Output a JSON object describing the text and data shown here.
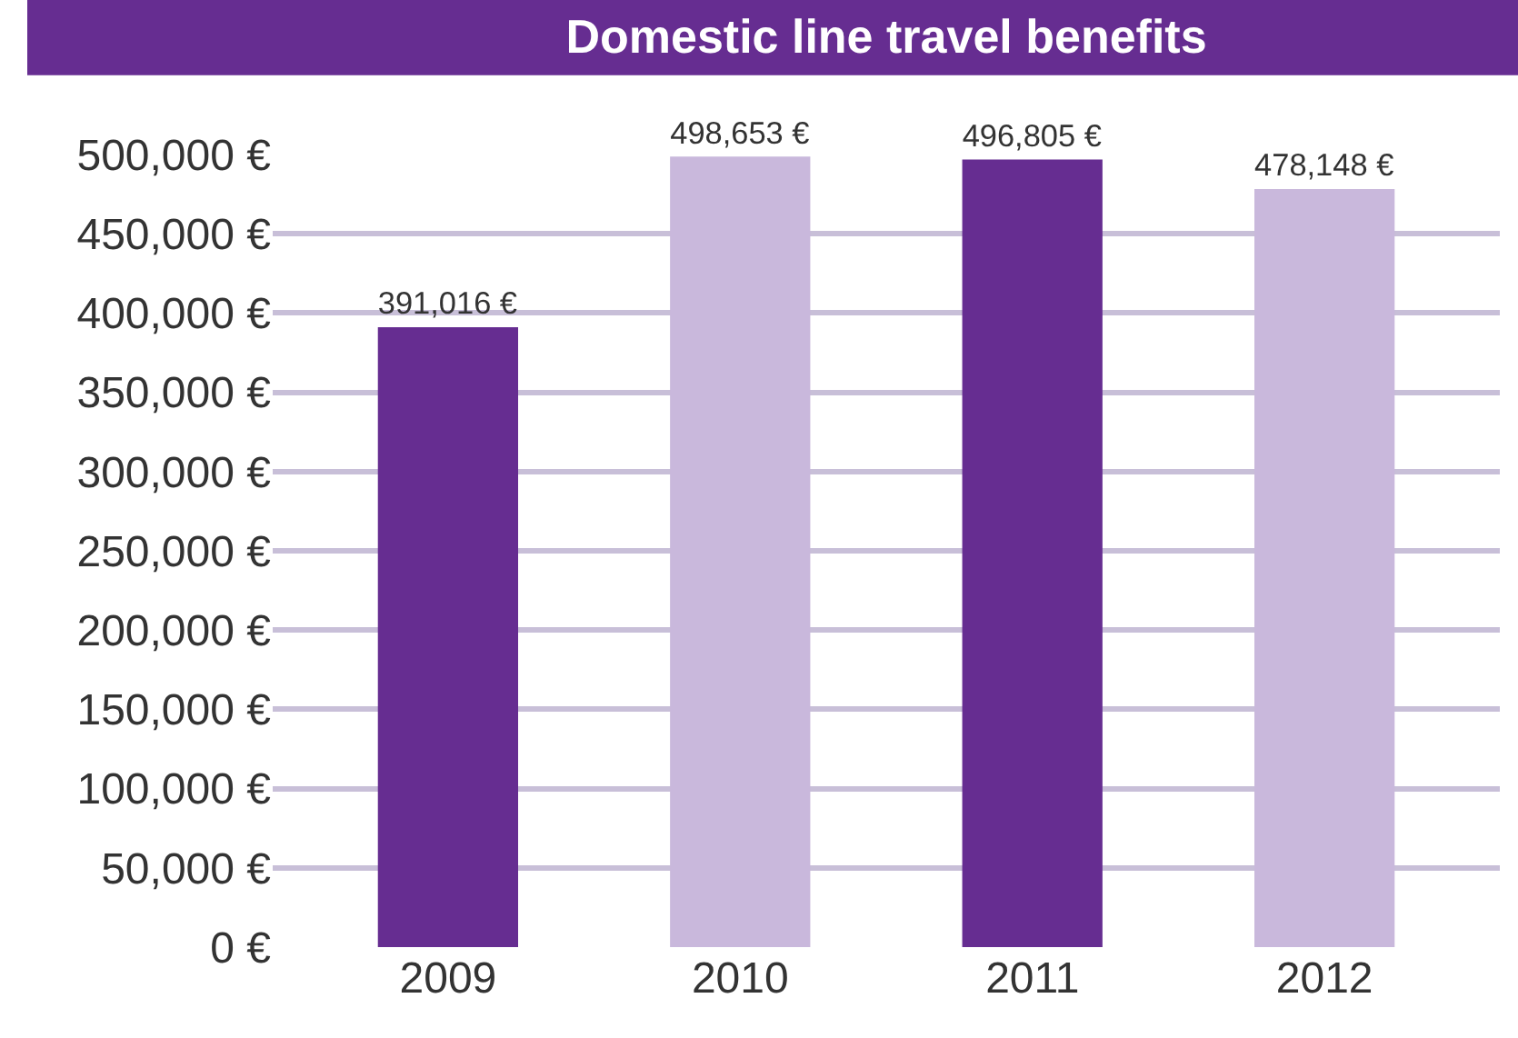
{
  "chart_data": {
    "type": "bar",
    "title": "Domestic line travel benefits",
    "categories": [
      "2009",
      "2010",
      "2011",
      "2012"
    ],
    "values": [
      391016,
      498653,
      496805,
      478148
    ],
    "colors": [
      "#662d91",
      "#c9b8dc",
      "#662d91",
      "#c9b8dc"
    ],
    "value_labels": [
      "391,016 €",
      "498,653 €",
      "496,805 €",
      "478,148 €"
    ],
    "ylim": [
      0,
      500000
    ],
    "yticks": [
      {
        "value": 0,
        "label": "0 €"
      },
      {
        "value": 50000,
        "label": "50,000 €"
      },
      {
        "value": 100000,
        "label": "100,000 €"
      },
      {
        "value": 150000,
        "label": "150,000 €"
      },
      {
        "value": 200000,
        "label": "200,000 €"
      },
      {
        "value": 250000,
        "label": "250,000 €"
      },
      {
        "value": 300000,
        "label": "300,000 €"
      },
      {
        "value": 350000,
        "label": "350,000 €"
      },
      {
        "value": 400000,
        "label": "400,000 €"
      },
      {
        "value": 450000,
        "label": "450,000 €"
      },
      {
        "value": 500000,
        "label": "500,000 €"
      }
    ],
    "grid": true
  }
}
